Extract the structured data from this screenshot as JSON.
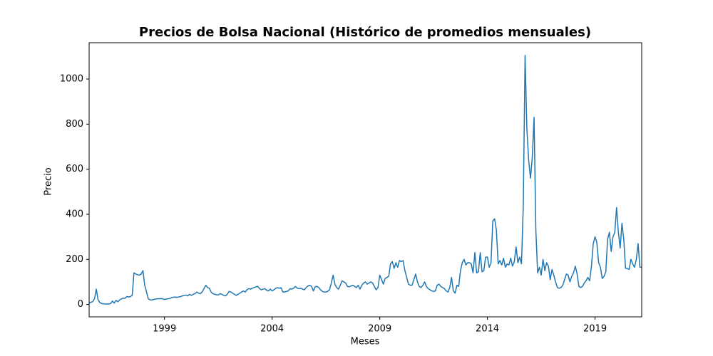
{
  "chart_data": {
    "type": "line",
    "title": "Precios de Bolsa Nacional (Histórico de promedios mensuales)",
    "xlabel": "Meses",
    "ylabel": "Precio",
    "color": "#1f77b4",
    "xlim": [
      1995.5,
      2021.167
    ],
    "ylim": [
      -55,
      1161
    ],
    "xticks": [
      1999,
      2004,
      2009,
      2014,
      2019
    ],
    "yticks": [
      0,
      200,
      400,
      600,
      800,
      1000
    ],
    "x": [
      1995.5,
      1995.583,
      1995.667,
      1995.75,
      1995.833,
      1995.917,
      1996,
      1996.083,
      1996.167,
      1996.25,
      1996.333,
      1996.417,
      1996.5,
      1996.583,
      1996.667,
      1996.75,
      1996.833,
      1996.917,
      1997,
      1997.083,
      1997.167,
      1997.25,
      1997.333,
      1997.417,
      1997.5,
      1997.583,
      1997.667,
      1997.75,
      1997.833,
      1997.917,
      1998,
      1998.083,
      1998.167,
      1998.25,
      1998.333,
      1998.417,
      1998.5,
      1998.583,
      1998.667,
      1998.75,
      1998.833,
      1998.917,
      1999,
      1999.083,
      1999.167,
      1999.25,
      1999.333,
      1999.417,
      1999.5,
      1999.583,
      1999.667,
      1999.75,
      1999.833,
      1999.917,
      2000,
      2000.083,
      2000.167,
      2000.25,
      2000.333,
      2000.417,
      2000.5,
      2000.583,
      2000.667,
      2000.75,
      2000.833,
      2000.917,
      2001,
      2001.083,
      2001.167,
      2001.25,
      2001.333,
      2001.417,
      2001.5,
      2001.583,
      2001.667,
      2001.75,
      2001.833,
      2001.917,
      2002,
      2002.083,
      2002.167,
      2002.25,
      2002.333,
      2002.417,
      2002.5,
      2002.583,
      2002.667,
      2002.75,
      2002.833,
      2002.917,
      2003,
      2003.083,
      2003.167,
      2003.25,
      2003.333,
      2003.417,
      2003.5,
      2003.583,
      2003.667,
      2003.75,
      2003.833,
      2003.917,
      2004,
      2004.083,
      2004.167,
      2004.25,
      2004.333,
      2004.417,
      2004.5,
      2004.583,
      2004.667,
      2004.75,
      2004.833,
      2004.917,
      2005,
      2005.083,
      2005.167,
      2005.25,
      2005.333,
      2005.417,
      2005.5,
      2005.583,
      2005.667,
      2005.75,
      2005.833,
      2005.917,
      2006,
      2006.083,
      2006.167,
      2006.25,
      2006.333,
      2006.417,
      2006.5,
      2006.583,
      2006.667,
      2006.75,
      2006.833,
      2006.917,
      2007,
      2007.083,
      2007.167,
      2007.25,
      2007.333,
      2007.417,
      2007.5,
      2007.583,
      2007.667,
      2007.75,
      2007.833,
      2007.917,
      2008,
      2008.083,
      2008.167,
      2008.25,
      2008.333,
      2008.417,
      2008.5,
      2008.583,
      2008.667,
      2008.75,
      2008.833,
      2008.917,
      2009,
      2009.083,
      2009.167,
      2009.25,
      2009.333,
      2009.417,
      2009.5,
      2009.583,
      2009.667,
      2009.75,
      2009.833,
      2009.917,
      2010,
      2010.083,
      2010.167,
      2010.25,
      2010.333,
      2010.417,
      2010.5,
      2010.583,
      2010.667,
      2010.75,
      2010.833,
      2010.917,
      2011,
      2011.083,
      2011.167,
      2011.25,
      2011.333,
      2011.417,
      2011.5,
      2011.583,
      2011.667,
      2011.75,
      2011.833,
      2011.917,
      2012,
      2012.083,
      2012.167,
      2012.25,
      2012.333,
      2012.417,
      2012.5,
      2012.583,
      2012.667,
      2012.75,
      2012.833,
      2012.917,
      2013,
      2013.083,
      2013.167,
      2013.25,
      2013.333,
      2013.417,
      2013.5,
      2013.583,
      2013.667,
      2013.75,
      2013.833,
      2013.917,
      2014,
      2014.083,
      2014.167,
      2014.25,
      2014.333,
      2014.417,
      2014.5,
      2014.583,
      2014.667,
      2014.75,
      2014.833,
      2014.917,
      2015,
      2015.083,
      2015.167,
      2015.25,
      2015.333,
      2015.417,
      2015.5,
      2015.583,
      2015.667,
      2015.75,
      2015.833,
      2015.917,
      2016,
      2016.083,
      2016.167,
      2016.25,
      2016.333,
      2016.417,
      2016.5,
      2016.583,
      2016.667,
      2016.75,
      2016.833,
      2016.917,
      2017,
      2017.083,
      2017.167,
      2017.25,
      2017.333,
      2017.417,
      2017.5,
      2017.583,
      2017.667,
      2017.75,
      2017.833,
      2017.917,
      2018,
      2018.083,
      2018.167,
      2018.25,
      2018.333,
      2018.417,
      2018.5,
      2018.583,
      2018.667,
      2018.75,
      2018.833,
      2018.917,
      2019,
      2019.083,
      2019.167,
      2019.25,
      2019.333,
      2019.417,
      2019.5,
      2019.583,
      2019.667,
      2019.75,
      2019.833,
      2019.917,
      2020,
      2020.083,
      2020.167,
      2020.25,
      2020.333,
      2020.417,
      2020.5,
      2020.583,
      2020.667,
      2020.75,
      2020.833,
      2020.917,
      2021,
      2021.083,
      2021.167
    ],
    "values": [
      5,
      10,
      12,
      25,
      68,
      20,
      8,
      4,
      3,
      2,
      2,
      2,
      4,
      15,
      6,
      18,
      12,
      20,
      25,
      28,
      27,
      35,
      33,
      35,
      40,
      140,
      135,
      132,
      130,
      135,
      150,
      85,
      55,
      25,
      20,
      20,
      22,
      24,
      25,
      25,
      26,
      25,
      22,
      24,
      25,
      27,
      30,
      32,
      33,
      32,
      33,
      35,
      38,
      40,
      42,
      38,
      45,
      40,
      45,
      48,
      55,
      50,
      48,
      55,
      70,
      85,
      75,
      72,
      55,
      48,
      45,
      43,
      42,
      48,
      45,
      40,
      38,
      45,
      58,
      55,
      50,
      45,
      40,
      45,
      50,
      55,
      60,
      55,
      65,
      70,
      68,
      72,
      75,
      78,
      80,
      70,
      65,
      68,
      70,
      62,
      60,
      68,
      60,
      65,
      72,
      74,
      72,
      74,
      55,
      55,
      58,
      60,
      70,
      68,
      72,
      80,
      72,
      70,
      72,
      68,
      65,
      75,
      82,
      85,
      80,
      60,
      78,
      80,
      75,
      65,
      58,
      55,
      55,
      58,
      65,
      95,
      130,
      90,
      75,
      68,
      85,
      105,
      100,
      95,
      80,
      78,
      82,
      85,
      80,
      75,
      85,
      68,
      85,
      95,
      100,
      90,
      95,
      100,
      95,
      80,
      65,
      75,
      130,
      110,
      90,
      115,
      120,
      125,
      180,
      190,
      160,
      185,
      165,
      195,
      190,
      195,
      150,
      120,
      90,
      85,
      85,
      110,
      135,
      100,
      80,
      75,
      85,
      100,
      80,
      70,
      65,
      60,
      58,
      60,
      85,
      90,
      80,
      75,
      70,
      60,
      55,
      75,
      120,
      60,
      50,
      85,
      80,
      150,
      185,
      200,
      175,
      185,
      185,
      180,
      140,
      230,
      140,
      145,
      230,
      145,
      150,
      210,
      210,
      165,
      185,
      370,
      380,
      330,
      180,
      195,
      175,
      205,
      165,
      180,
      175,
      205,
      170,
      190,
      255,
      185,
      210,
      180,
      440,
      1105,
      780,
      640,
      560,
      650,
      830,
      330,
      140,
      165,
      130,
      200,
      150,
      185,
      170,
      110,
      155,
      130,
      100,
      75,
      72,
      75,
      85,
      110,
      135,
      130,
      100,
      125,
      140,
      170,
      135,
      80,
      75,
      80,
      95,
      105,
      120,
      105,
      170,
      270,
      300,
      275,
      185,
      165,
      115,
      125,
      145,
      290,
      320,
      235,
      300,
      320,
      430,
      320,
      250,
      360,
      290,
      160,
      160,
      155,
      200,
      180,
      165,
      200,
      270,
      165,
      165
    ]
  }
}
